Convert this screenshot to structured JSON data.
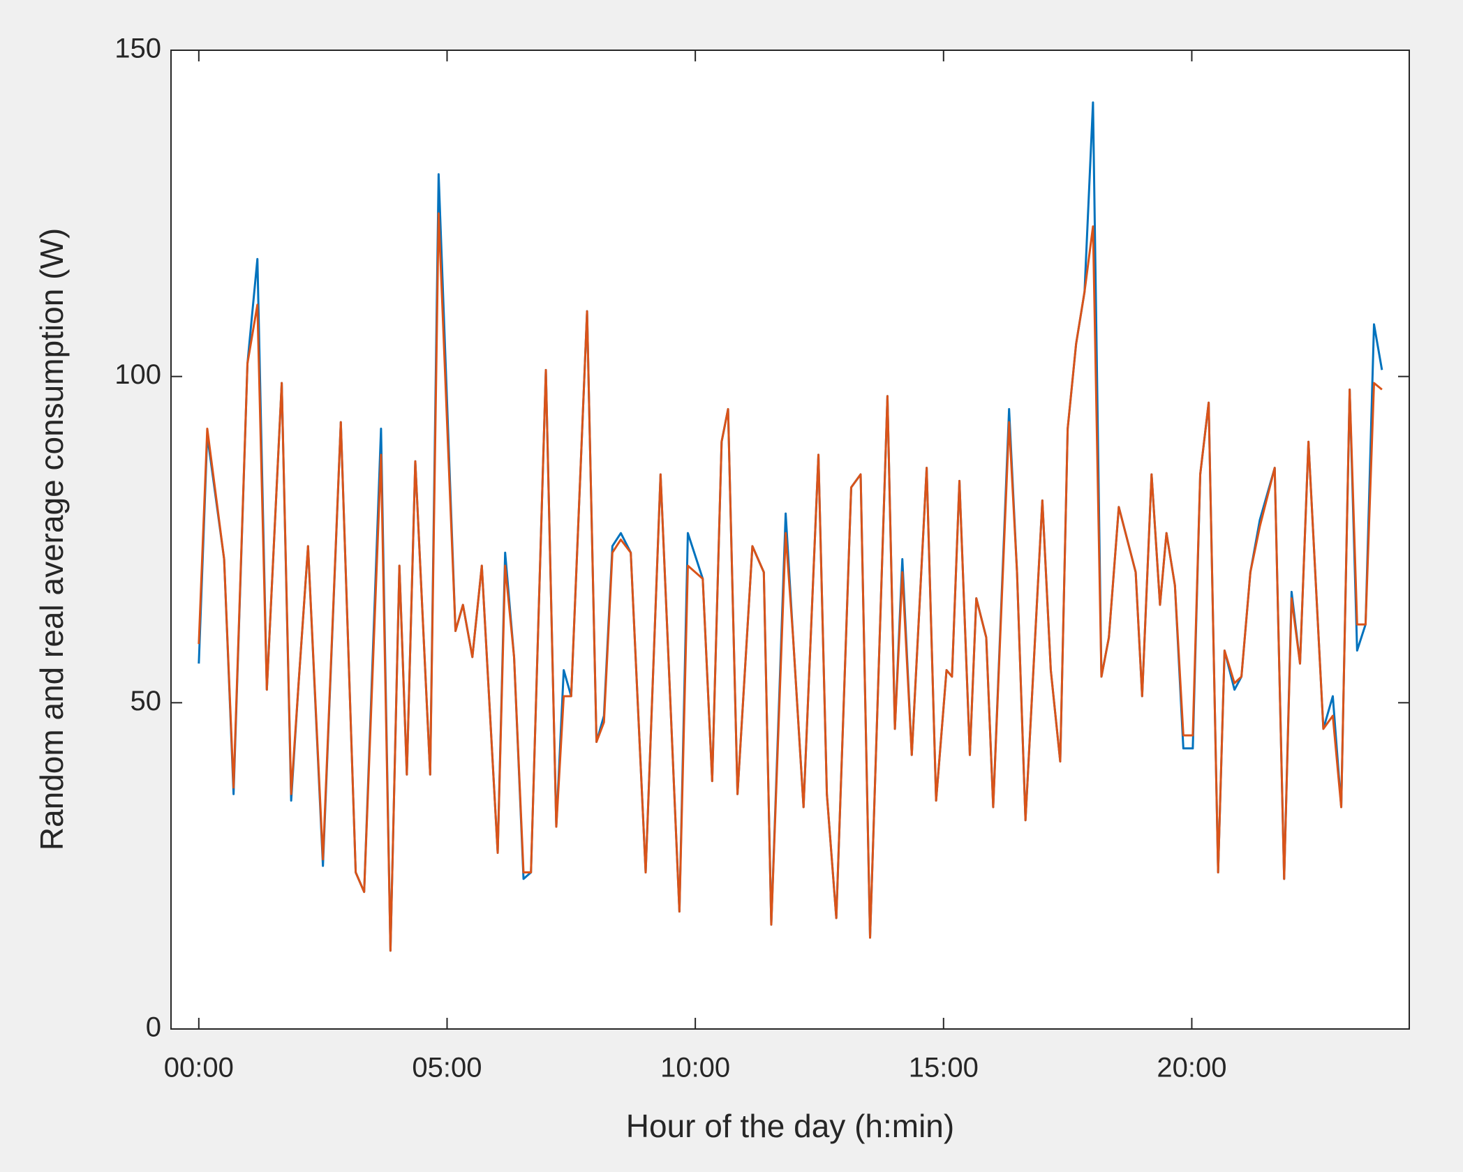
{
  "chart_data": {
    "type": "line",
    "xlabel": "Hour of the day (h:min)",
    "ylabel": "Random and real average consumption (W)",
    "x": [
      0,
      0.17,
      0.51,
      0.7,
      0.98,
      1.18,
      1.37,
      1.67,
      1.86,
      2.01,
      2.2,
      2.5,
      2.86,
      3.16,
      3.33,
      3.67,
      3.86,
      4.04,
      4.19,
      4.36,
      4.66,
      4.83,
      5.17,
      5.32,
      5.51,
      5.7,
      6.02,
      6.17,
      6.35,
      6.54,
      6.69,
      6.99,
      7.2,
      7.35,
      7.5,
      7.82,
      8.01,
      8.16,
      8.33,
      8.5,
      8.7,
      9.0,
      9.3,
      9.68,
      9.85,
      10.15,
      10.34,
      10.53,
      10.66,
      10.85,
      11.15,
      11.38,
      11.53,
      11.82,
      11.97,
      12.18,
      12.48,
      12.65,
      12.84,
      13.14,
      13.33,
      13.52,
      13.87,
      14.02,
      14.17,
      14.36,
      14.66,
      14.85,
      15.06,
      15.17,
      15.32,
      15.53,
      15.66,
      15.86,
      16.0,
      16.32,
      16.48,
      16.65,
      16.99,
      17.16,
      17.35,
      17.5,
      17.67,
      17.84,
      18.01,
      18.18,
      18.33,
      18.53,
      18.87,
      19.0,
      19.19,
      19.36,
      19.49,
      19.66,
      19.83,
      20.02,
      20.17,
      20.34,
      20.53,
      20.66,
      20.86,
      21.0,
      21.18,
      21.37,
      21.67,
      21.86,
      22.01,
      22.18,
      22.35,
      22.65,
      22.84,
      23.01,
      23.18,
      23.33,
      23.5,
      23.67,
      23.83
    ],
    "series": [
      {
        "color": "#0072bd",
        "values": [
          56,
          91,
          72,
          36,
          102,
          118,
          52,
          99,
          35,
          53,
          74,
          25,
          93,
          24,
          21,
          92,
          12,
          71,
          39,
          87,
          39,
          131,
          61,
          65,
          57,
          71,
          27,
          73,
          57,
          23,
          24,
          101,
          31,
          55,
          51,
          110,
          44,
          48,
          74,
          76,
          73,
          24,
          85,
          18,
          76,
          69,
          38,
          90,
          95,
          36,
          74,
          70,
          16,
          79,
          60,
          34,
          88,
          36,
          17,
          83,
          85,
          14,
          97,
          46,
          72,
          42,
          86,
          35,
          55,
          54,
          84,
          42,
          66,
          60,
          34,
          95,
          70,
          32,
          81,
          55,
          41,
          92,
          105,
          113,
          142,
          54,
          60,
          80,
          70,
          51,
          85,
          65,
          76,
          68,
          43,
          43,
          85,
          96,
          24,
          58,
          52,
          54,
          70,
          78,
          86,
          23,
          67,
          56,
          90,
          46,
          51,
          34,
          98,
          58,
          62,
          108,
          101
        ]
      },
      {
        "color": "#d95319",
        "values": [
          59,
          92,
          72,
          37,
          102,
          111,
          52,
          99,
          36,
          53,
          74,
          26,
          93,
          24,
          21,
          88,
          12,
          71,
          39,
          87,
          39,
          125,
          61,
          65,
          57,
          71,
          27,
          71,
          57,
          24,
          24,
          101,
          31,
          51,
          51,
          110,
          44,
          47,
          73,
          75,
          73,
          24,
          85,
          18,
          71,
          69,
          38,
          90,
          95,
          36,
          74,
          70,
          16,
          76,
          60,
          34,
          88,
          36,
          17,
          83,
          85,
          14,
          97,
          46,
          70,
          42,
          86,
          35,
          55,
          54,
          84,
          42,
          66,
          60,
          34,
          93,
          70,
          32,
          81,
          55,
          41,
          92,
          105,
          113,
          123,
          54,
          60,
          80,
          70,
          51,
          85,
          65,
          76,
          68,
          45,
          45,
          85,
          96,
          24,
          58,
          53,
          54,
          70,
          77,
          86,
          23,
          66,
          56,
          90,
          46,
          48,
          34,
          98,
          62,
          62,
          99,
          98
        ]
      }
    ],
    "xlim": [
      -0.56,
      24.38
    ],
    "xticks": [
      {
        "value": 0,
        "label": "00:00"
      },
      {
        "value": 5,
        "label": "05:00"
      },
      {
        "value": 10,
        "label": "10:00"
      },
      {
        "value": 15,
        "label": "15:00"
      },
      {
        "value": 20,
        "label": "20:00"
      }
    ],
    "ylim": [
      0,
      150
    ],
    "yticks": [
      0,
      50,
      100,
      150
    ],
    "grid": false
  }
}
